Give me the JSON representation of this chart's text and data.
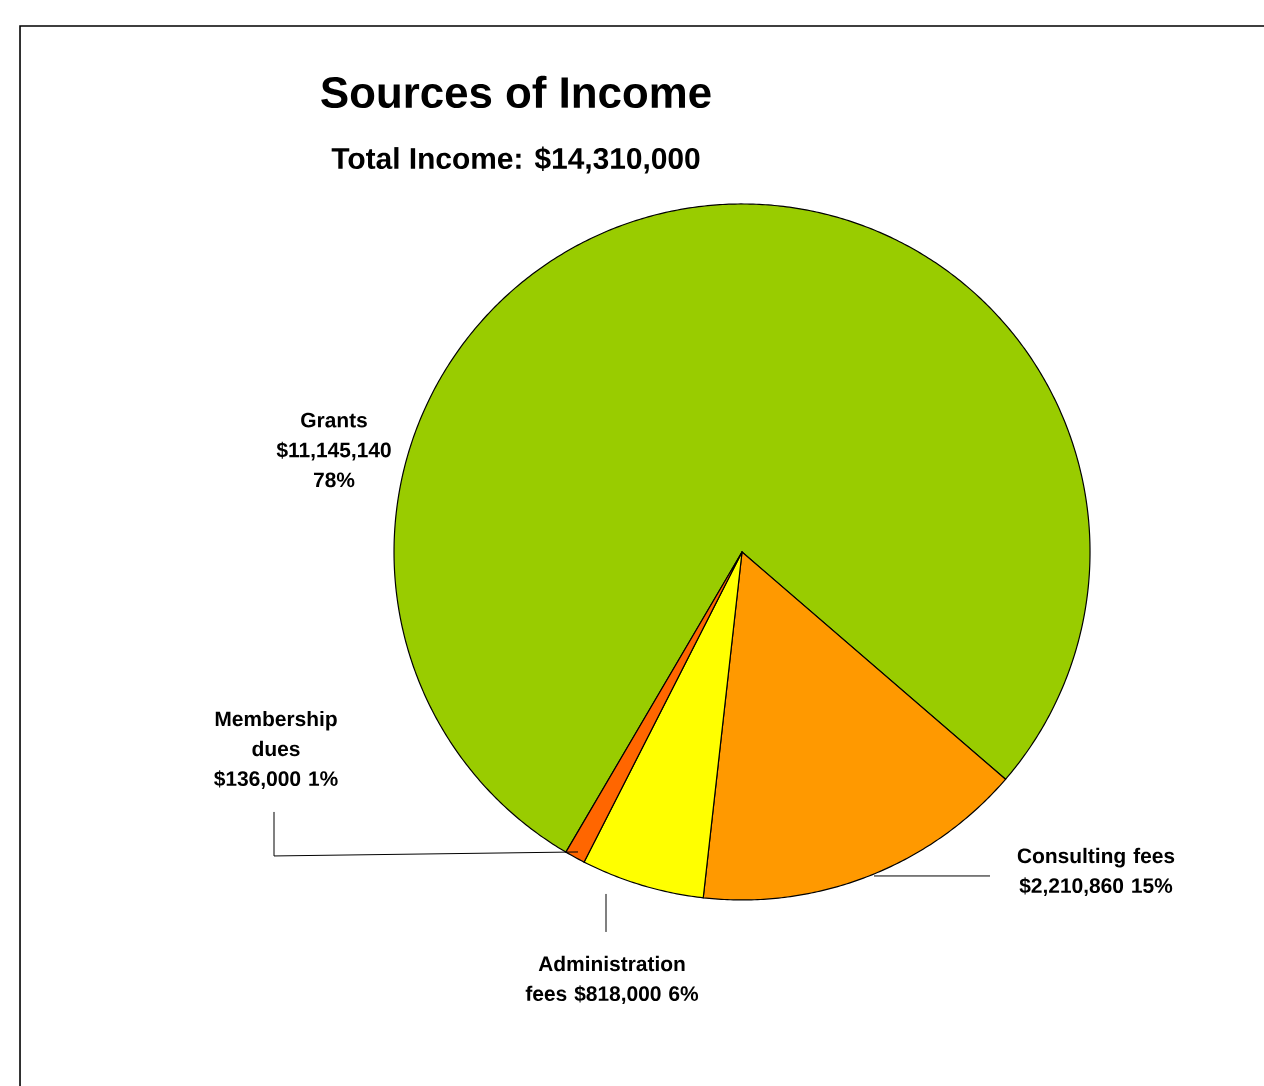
{
  "chart_data": {
    "type": "pie",
    "title": "Sources of Income",
    "subtitle": "Total Income: $14,310,000",
    "categories": [
      "Grants",
      "Consulting fees",
      "Administration fees",
      "Membership dues"
    ],
    "values": [
      11145140,
      2210860,
      818000,
      136000
    ],
    "colors": [
      "#99cc00",
      "#ff9900",
      "#ffff00",
      "#ff6600"
    ],
    "value_labels": [
      "$11,145,140 78%",
      "$2,210,860 15%",
      "$818,000 6%",
      "$136,000 1%"
    ]
  }
}
